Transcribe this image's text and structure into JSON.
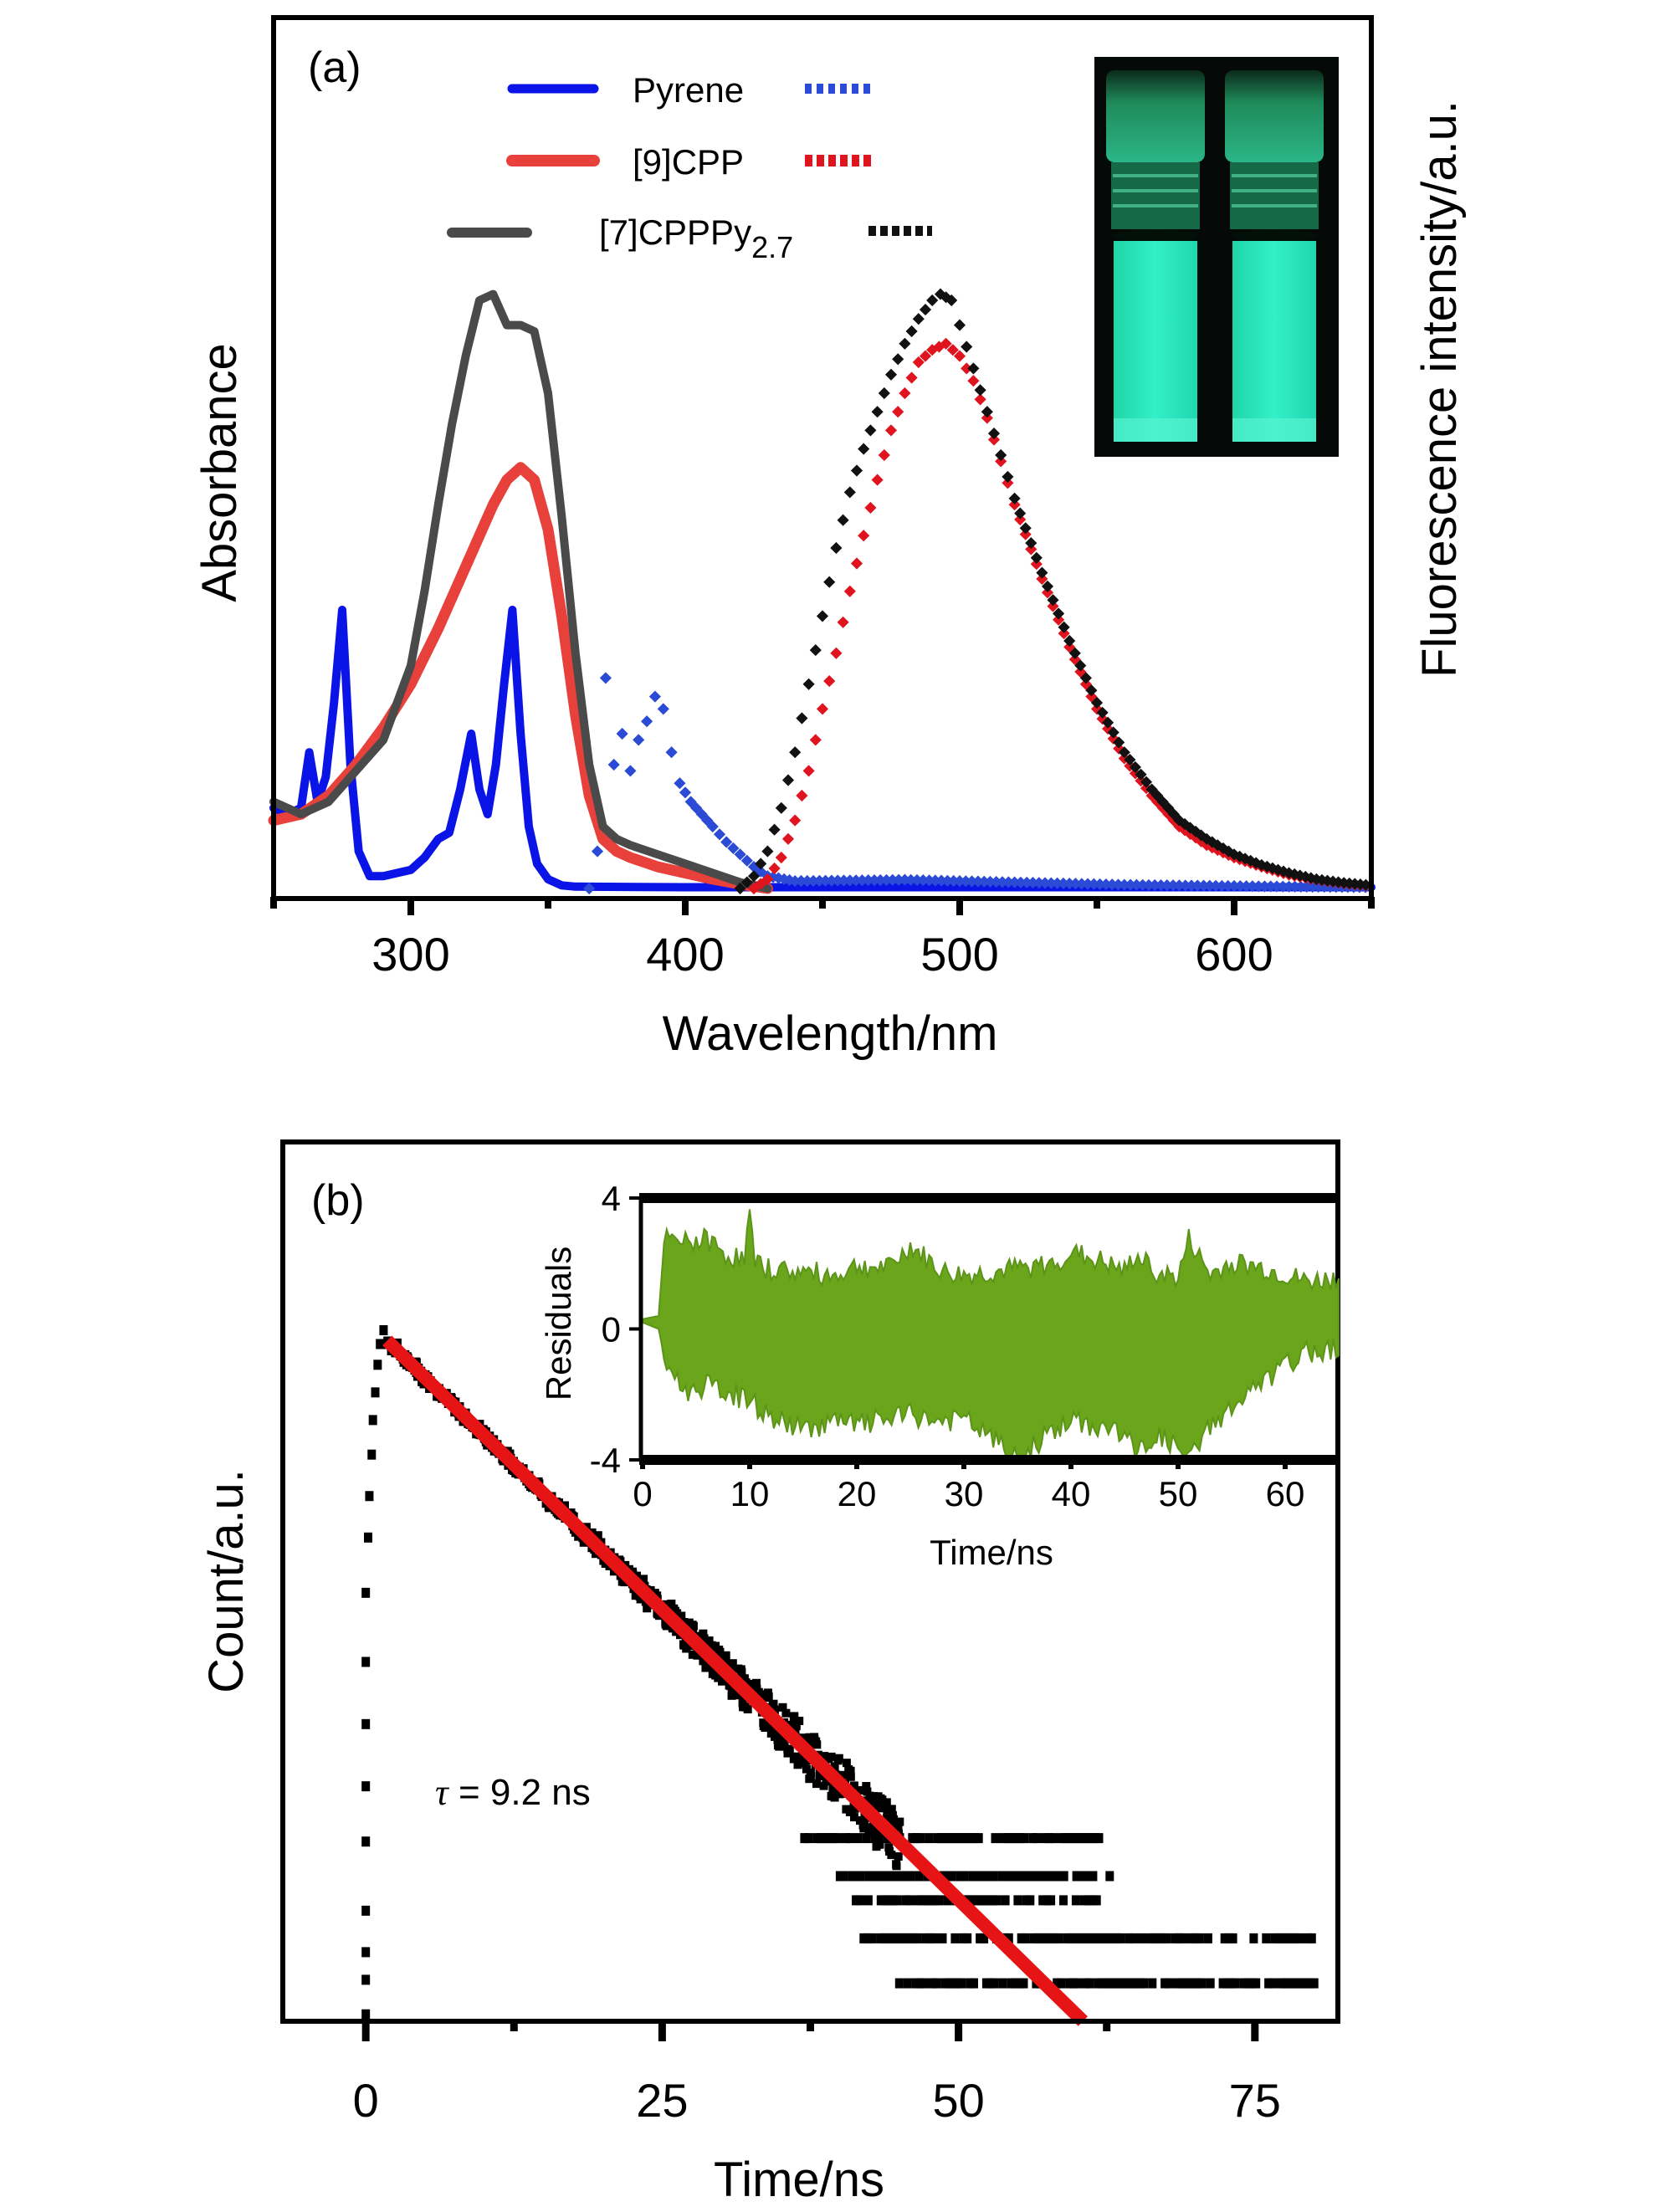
{
  "chart_data": [
    {
      "panel_label": "(a)",
      "type": "line",
      "title": "",
      "xlabel": "Wavelength/nm",
      "ylabel": "Absorbance",
      "ylabel_right": "Fluorescence intensity/a.u.",
      "xlim": [
        250,
        650
      ],
      "ylim": [
        0,
        1
      ],
      "xticks": [
        300,
        400,
        500,
        600
      ],
      "xtick_labels": [
        "300",
        "400",
        "500",
        "600"
      ],
      "yticks": [],
      "grid": false,
      "legend": {
        "placement": "top-left",
        "entries": [
          {
            "name": "Pyrene",
            "label_main": "Pyrene",
            "label_sub": "",
            "solid_color": "#0a14e6",
            "dotted_color": "#2b4ad6"
          },
          {
            "name": "[9]CPP",
            "label_main": "[9]CPP",
            "label_sub": "",
            "solid_color": "#e8413c",
            "dotted_color": "#e0141e"
          },
          {
            "name": "[7]CPPPy2.7",
            "label_main": "[7]CPPPy",
            "label_sub": "2.7",
            "solid_color": "#4a4a4a",
            "dotted_color": "#111111"
          }
        ]
      },
      "inset_photo": {
        "description": "two vials fluorescing cyan-green under UV light",
        "glow_color": "#2ee8c0"
      },
      "series": [
        {
          "name": "Pyrene absorption",
          "style": "solid",
          "color": "#0a14e6",
          "x": [
            250,
            255,
            260,
            263,
            266,
            269,
            272,
            275,
            278,
            281,
            285,
            290,
            295,
            300,
            305,
            310,
            314,
            318,
            322,
            325,
            328,
            331,
            334,
            337,
            340,
            343,
            346,
            350,
            355,
            360,
            400,
            450,
            500,
            550,
            600,
            650
          ],
          "y": [
            0.13,
            0.12,
            0.13,
            0.22,
            0.14,
            0.18,
            0.3,
            0.45,
            0.2,
            0.06,
            0.02,
            0.02,
            0.025,
            0.03,
            0.05,
            0.08,
            0.09,
            0.16,
            0.25,
            0.16,
            0.12,
            0.2,
            0.33,
            0.45,
            0.25,
            0.1,
            0.04,
            0.015,
            0.005,
            0.003,
            0.002,
            0.002,
            0.002,
            0.002,
            0.002,
            0.002
          ]
        },
        {
          "name": "[9]CPP absorption",
          "style": "solid",
          "color": "#e8413c",
          "x": [
            250,
            260,
            270,
            280,
            290,
            300,
            310,
            320,
            330,
            335,
            340,
            345,
            350,
            355,
            360,
            365,
            370,
            375,
            380,
            390,
            400,
            410,
            420,
            430
          ],
          "y": [
            0.11,
            0.12,
            0.15,
            0.2,
            0.26,
            0.33,
            0.42,
            0.52,
            0.62,
            0.66,
            0.68,
            0.66,
            0.58,
            0.44,
            0.28,
            0.15,
            0.08,
            0.06,
            0.05,
            0.035,
            0.025,
            0.015,
            0.007,
            0.0
          ]
        },
        {
          "name": "[7]CPPPy2.7 absorption",
          "style": "solid",
          "color": "#4a4a4a",
          "x": [
            250,
            260,
            270,
            280,
            290,
            300,
            305,
            310,
            315,
            320,
            325,
            330,
            335,
            340,
            345,
            350,
            355,
            360,
            365,
            370,
            375,
            380,
            390,
            400,
            410,
            420,
            430
          ],
          "y": [
            0.14,
            0.12,
            0.14,
            0.19,
            0.24,
            0.36,
            0.48,
            0.62,
            0.75,
            0.86,
            0.95,
            0.96,
            0.91,
            0.91,
            0.9,
            0.8,
            0.6,
            0.38,
            0.2,
            0.1,
            0.08,
            0.07,
            0.055,
            0.04,
            0.025,
            0.01,
            0.0
          ]
        },
        {
          "name": "Pyrene emission",
          "style": "dotted",
          "color": "#2b4ad6",
          "x": [
            365,
            368,
            371,
            374,
            377,
            380,
            383,
            386,
            389,
            392,
            395,
            398,
            402,
            406,
            410,
            415,
            420,
            425,
            430,
            440,
            460,
            480,
            500,
            520,
            540,
            560,
            580,
            600,
            620,
            650
          ],
          "y": [
            0.0,
            0.06,
            0.34,
            0.2,
            0.25,
            0.19,
            0.24,
            0.27,
            0.31,
            0.29,
            0.22,
            0.17,
            0.14,
            0.12,
            0.1,
            0.075,
            0.055,
            0.035,
            0.02,
            0.012,
            0.013,
            0.014,
            0.012,
            0.01,
            0.008,
            0.006,
            0.005,
            0.004,
            0.003,
            0.002
          ]
        },
        {
          "name": "[9]CPP emission",
          "style": "dotted",
          "color": "#e0141e",
          "x": [
            425,
            430,
            435,
            440,
            445,
            450,
            455,
            460,
            465,
            470,
            475,
            480,
            485,
            490,
            495,
            500,
            505,
            510,
            515,
            520,
            530,
            540,
            550,
            560,
            570,
            580,
            590,
            600,
            610,
            620,
            630,
            640,
            650
          ],
          "y": [
            0.0,
            0.015,
            0.05,
            0.11,
            0.19,
            0.29,
            0.38,
            0.48,
            0.57,
            0.66,
            0.74,
            0.8,
            0.85,
            0.87,
            0.88,
            0.86,
            0.82,
            0.76,
            0.69,
            0.62,
            0.5,
            0.39,
            0.29,
            0.21,
            0.15,
            0.1,
            0.07,
            0.05,
            0.035,
            0.022,
            0.014,
            0.008,
            0.004
          ]
        },
        {
          "name": "[7]CPPPy2.7 emission",
          "style": "dotted",
          "color": "#111111",
          "x": [
            420,
            425,
            430,
            435,
            440,
            445,
            450,
            455,
            460,
            465,
            470,
            475,
            480,
            485,
            490,
            493,
            497,
            500,
            505,
            510,
            515,
            520,
            530,
            540,
            550,
            560,
            570,
            580,
            590,
            600,
            610,
            620,
            630,
            640,
            650
          ],
          "y": [
            0.0,
            0.02,
            0.06,
            0.13,
            0.22,
            0.33,
            0.44,
            0.55,
            0.64,
            0.71,
            0.77,
            0.83,
            0.88,
            0.92,
            0.95,
            0.96,
            0.95,
            0.91,
            0.84,
            0.77,
            0.7,
            0.63,
            0.51,
            0.4,
            0.3,
            0.22,
            0.16,
            0.11,
            0.08,
            0.055,
            0.038,
            0.025,
            0.015,
            0.009,
            0.005
          ]
        }
      ]
    },
    {
      "panel_label": "(b)",
      "type": "scatter",
      "title": "",
      "xlabel": "Time/ns",
      "ylabel": "Count/a.u.",
      "xlim": [
        -7,
        82
      ],
      "ylim": [
        0,
        1
      ],
      "xticks": [
        0,
        25,
        50,
        75
      ],
      "xtick_labels": [
        "0",
        "25",
        "50",
        "75"
      ],
      "yticks": [],
      "grid": false,
      "annotation": {
        "symbol": "τ",
        "text": " = 9.2 ns"
      },
      "decay_data": {
        "name": "Decay counts",
        "color": "#000000",
        "rise_x": [
          0,
          0,
          0,
          0,
          0,
          0,
          0,
          0,
          0,
          0.2,
          0.3,
          0.5,
          0.6,
          0.8,
          1.0,
          1.2,
          1.5
        ],
        "rise_y": [
          0.01,
          0.06,
          0.1,
          0.16,
          0.26,
          0.34,
          0.43,
          0.52,
          0.62,
          0.7,
          0.76,
          0.82,
          0.87,
          0.91,
          0.95,
          0.98,
          1.0
        ],
        "peak": {
          "x": 1.8,
          "y": 1.0
        },
        "tail_rows": [
          {
            "y": 0.265,
            "x_from": 37,
            "x_to": 62
          },
          {
            "y": 0.21,
            "x_from": 40,
            "x_to": 63
          },
          {
            "y": 0.175,
            "x_from": 41,
            "x_to": 62
          },
          {
            "y": 0.12,
            "x_from": 42,
            "x_to": 80
          },
          {
            "y": 0.055,
            "x_from": 45,
            "x_to": 80
          }
        ]
      },
      "fit": {
        "name": "Exponential fit",
        "color": "#e61414",
        "x": [
          1.8,
          60.5
        ],
        "y": [
          0.985,
          0.0
        ]
      },
      "inset": {
        "type": "area",
        "xlabel": "Time/ns",
        "ylabel": "Residuals",
        "xlim": [
          0,
          65
        ],
        "ylim": [
          -4,
          4
        ],
        "xticks": [
          0,
          10,
          20,
          30,
          40,
          50,
          60
        ],
        "xtick_labels": [
          "0",
          "10",
          "20",
          "30",
          "40",
          "50",
          "60"
        ],
        "yticks": [
          4,
          0,
          -4
        ],
        "ytick_labels": [
          "4",
          "0",
          "-4"
        ],
        "color": "#6aa51c",
        "envelope_x": [
          0,
          1.5,
          2,
          4,
          6,
          8,
          9.5,
          10,
          10.5,
          12,
          15,
          18,
          20,
          23,
          25,
          28,
          30,
          33,
          35,
          38,
          40,
          43,
          45,
          46,
          48,
          50,
          51,
          53,
          55,
          58,
          60,
          62,
          65
        ],
        "envelope_upper": [
          0.3,
          0.4,
          2.6,
          2.5,
          2.6,
          2.1,
          2.0,
          3.4,
          1.8,
          1.7,
          1.6,
          1.5,
          1.8,
          1.7,
          2.4,
          1.6,
          1.5,
          1.6,
          1.7,
          1.8,
          2.2,
          1.9,
          1.6,
          2.1,
          1.6,
          1.4,
          2.6,
          1.5,
          1.9,
          1.7,
          1.5,
          1.3,
          1.4
        ],
        "envelope_lower": [
          0.2,
          0.0,
          -0.8,
          -1.8,
          -1.6,
          -1.8,
          -2.0,
          -1.9,
          -2.2,
          -2.6,
          -2.9,
          -2.7,
          -2.8,
          -2.6,
          -2.5,
          -2.7,
          -2.6,
          -3.3,
          -3.9,
          -3.0,
          -2.7,
          -2.9,
          -3.0,
          -3.7,
          -3.1,
          -3.5,
          -3.9,
          -2.8,
          -2.3,
          -1.5,
          -1.0,
          -0.6,
          -0.4
        ]
      }
    }
  ]
}
